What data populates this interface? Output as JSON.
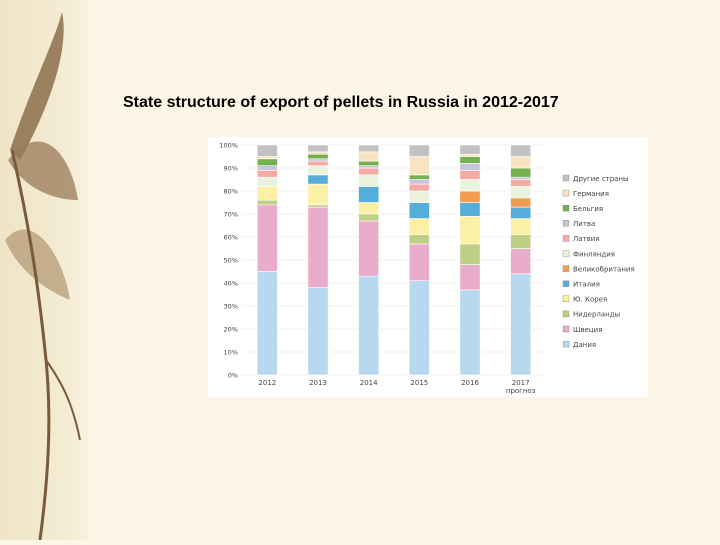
{
  "slide": {
    "title": "State structure of export of pellets in Russia in  2012-2017"
  },
  "decor": {
    "leaf_color": "#8c6e4c",
    "stem_color": "#7a5a3c"
  },
  "chart_data": {
    "type": "bar",
    "stacked": true,
    "title": "",
    "xlabel": "",
    "ylabel": "",
    "ylim": [
      0,
      100
    ],
    "y_ticks": [
      "0%",
      "10%",
      "20%",
      "30%",
      "40%",
      "50%",
      "60%",
      "70%",
      "80%",
      "90%",
      "100%"
    ],
    "categories": [
      "2012",
      "2013",
      "2014",
      "2015",
      "2016",
      "2017"
    ],
    "category_sublabels": [
      "",
      "",
      "",
      "",
      "",
      "прогноз"
    ],
    "grid": true,
    "legend_position": "right",
    "series": [
      {
        "name": "Дания",
        "color": "#b7d9ef",
        "values": [
          45,
          38,
          43,
          41,
          37,
          44
        ]
      },
      {
        "name": "Швеция",
        "color": "#eaaccb",
        "values": [
          29,
          35,
          24,
          16,
          11,
          11
        ]
      },
      {
        "name": "Нидерланды",
        "color": "#bfcf86",
        "values": [
          2,
          1,
          3,
          4,
          9,
          6
        ]
      },
      {
        "name": "Ю. Корея",
        "color": "#fbf1a6",
        "values": [
          6,
          9,
          5,
          7,
          12,
          7
        ]
      },
      {
        "name": "Италия",
        "color": "#55aeda",
        "values": [
          0,
          4,
          7,
          7,
          6,
          5
        ]
      },
      {
        "name": "Великобритания",
        "color": "#f39c50",
        "values": [
          0,
          0,
          0,
          0,
          5,
          4
        ]
      },
      {
        "name": "Финляндия",
        "color": "#eaf3de",
        "values": [
          4,
          4,
          5,
          5,
          5,
          5
        ]
      },
      {
        "name": "Латвия",
        "color": "#f4aba3",
        "values": [
          3,
          2,
          3,
          3,
          4,
          3
        ]
      },
      {
        "name": "Литва",
        "color": "#c8c4dc",
        "values": [
          2,
          1,
          1,
          2,
          3,
          1
        ]
      },
      {
        "name": "Бельгия",
        "color": "#74b04e",
        "values": [
          3,
          2,
          2,
          2,
          3,
          4
        ]
      },
      {
        "name": "Германия",
        "color": "#f8e4c0",
        "values": [
          1,
          1,
          4,
          8,
          1,
          5
        ]
      },
      {
        "name": "Другие страны",
        "color": "#c2c2c2",
        "values": [
          5,
          3,
          3,
          5,
          4,
          5
        ]
      }
    ],
    "legend_order": [
      "Другие страны",
      "Германия",
      "Бельгия",
      "Литва",
      "Латвия",
      "Финляндия",
      "Великобритания",
      "Италия",
      "Ю. Корея",
      "Нидерланды",
      "Швеция",
      "Дания"
    ]
  }
}
